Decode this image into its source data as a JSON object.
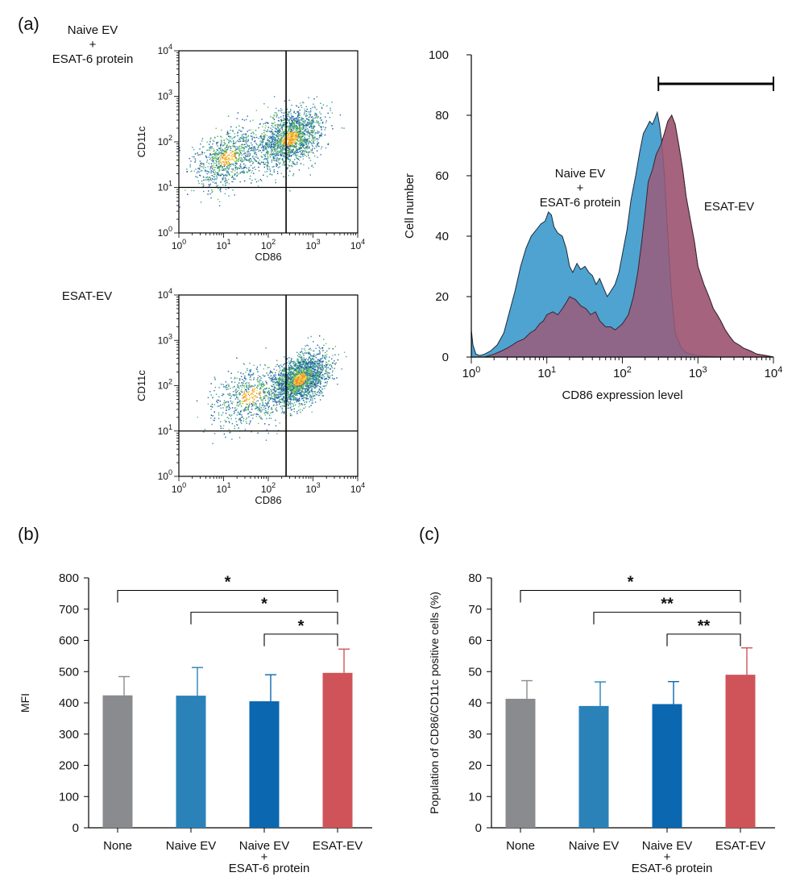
{
  "panel_labels": {
    "a": "(a)",
    "b": "(b)",
    "c": "(c)"
  },
  "colors": {
    "none": "#8a8b8f",
    "naive_ev": "#2b82b9",
    "naive_ev_protein": "#0a67b0",
    "esat_ev": "#cf5459",
    "hist_naive_fill": "#4fa3d1",
    "hist_esat_fill": "#9a5c7a",
    "hist_esat_edge": "#e08a8e",
    "naive_text": "#2a7fb8",
    "esat_text": "#cf5459"
  },
  "chart_data": [
    {
      "type": "scatter",
      "id": "dotplot-naive",
      "group_label_lines": [
        "Naive EV",
        "+",
        "ESAT-6 protein"
      ],
      "xlabel": "CD86",
      "ylabel": "CD11c",
      "scale": "log10",
      "xlim": [
        1,
        10000
      ],
      "ylim": [
        1,
        10000
      ],
      "tick_exponents": [
        0,
        1,
        2,
        3,
        4
      ],
      "quadrant_gate": {
        "x": 250,
        "y": 10
      },
      "populations": [
        {
          "center": [
            12,
            45
          ],
          "spread": [
            0.38,
            0.3
          ],
          "n": 900
        },
        {
          "center": [
            300,
            120
          ],
          "spread": [
            0.35,
            0.3
          ],
          "n": 1700
        }
      ]
    },
    {
      "type": "scatter",
      "id": "dotplot-esat",
      "group_label_lines": [
        "ESAT-EV"
      ],
      "xlabel": "CD86",
      "ylabel": "CD11c",
      "scale": "log10",
      "xlim": [
        1,
        10000
      ],
      "ylim": [
        1,
        10000
      ],
      "tick_exponents": [
        0,
        1,
        2,
        3,
        4
      ],
      "quadrant_gate": {
        "x": 250,
        "y": 10
      },
      "populations": [
        {
          "center": [
            40,
            60
          ],
          "spread": [
            0.45,
            0.32
          ],
          "n": 700
        },
        {
          "center": [
            500,
            140
          ],
          "spread": [
            0.3,
            0.25
          ],
          "n": 2300
        }
      ]
    },
    {
      "type": "area",
      "id": "histogram",
      "xlabel": "CD86 expression level",
      "ylabel": "Cell number",
      "xscale": "log10",
      "xlim": [
        1,
        10000
      ],
      "ylim": [
        0,
        100
      ],
      "y_ticks": [
        0,
        20,
        40,
        60,
        80,
        100
      ],
      "x_tick_exponents": [
        0,
        1,
        2,
        3,
        4
      ],
      "gate_range": [
        300,
        10000
      ],
      "series": [
        {
          "name": "Naive EV + ESAT-6 protein",
          "label_lines": [
            "Naive EV",
            "+",
            "ESAT-6 protein"
          ],
          "x": [
            1,
            1.05,
            1.15,
            1.3,
            1.5,
            1.8,
            2.2,
            2.7,
            3.2,
            3.8,
            4.5,
            5.3,
            6.2,
            7.2,
            8.3,
            9.5,
            10.5,
            11.5,
            12.5,
            14,
            16,
            18,
            20,
            22,
            25,
            28,
            32,
            36,
            40,
            45,
            50,
            56,
            63,
            71,
            80,
            90,
            100,
            115,
            130,
            150,
            170,
            190,
            210,
            230,
            250,
            270,
            290,
            310,
            330,
            360,
            400,
            450,
            500,
            600,
            700,
            800,
            1000,
            1500,
            2000,
            3000,
            5000,
            7000,
            10000
          ],
          "y": [
            9,
            4,
            1,
            0.5,
            1,
            2,
            4,
            8,
            15,
            22,
            30,
            36,
            40,
            42,
            44,
            45,
            48,
            47,
            43,
            41,
            40,
            36,
            30,
            28,
            31,
            29,
            30,
            28,
            27,
            24,
            26,
            23,
            20,
            22,
            24,
            28,
            34,
            42,
            52,
            60,
            68,
            74,
            76,
            78,
            77,
            79,
            81,
            77,
            72,
            60,
            40,
            20,
            8,
            3,
            1.5,
            1,
            0.5,
            0.2,
            0,
            0,
            0,
            0,
            0
          ]
        },
        {
          "name": "ESAT-EV",
          "label_lines": [
            "ESAT-EV"
          ],
          "x": [
            1,
            1.5,
            2,
            2.5,
            3,
            3.5,
            4,
            5,
            6,
            7,
            8,
            9,
            10,
            12,
            14,
            16,
            18,
            20,
            24,
            28,
            33,
            38,
            44,
            50,
            60,
            70,
            80,
            90,
            100,
            120,
            140,
            160,
            180,
            200,
            220,
            250,
            280,
            320,
            360,
            400,
            450,
            500,
            560,
            630,
            700,
            800,
            900,
            1000,
            1200,
            1400,
            1600,
            1800,
            2000,
            2300,
            2600,
            3000,
            3500,
            4000,
            5000,
            6000,
            8000,
            10000
          ],
          "y": [
            0,
            0,
            1,
            2,
            3,
            4,
            5,
            6,
            8,
            9,
            11,
            12,
            14,
            15,
            14,
            16,
            18,
            20,
            19,
            17,
            16,
            14,
            15,
            12,
            10,
            10,
            9,
            10,
            11,
            14,
            20,
            28,
            38,
            48,
            58,
            62,
            67,
            70,
            74,
            78,
            80,
            77,
            70,
            62,
            53,
            45,
            38,
            30,
            24,
            20,
            16,
            14,
            12,
            9,
            7,
            5,
            4,
            3,
            2,
            1,
            0.5,
            0
          ]
        }
      ]
    },
    {
      "type": "bar",
      "id": "mfi",
      "ylabel": "MFI",
      "ylim": [
        0,
        800
      ],
      "y_ticks": [
        0,
        100,
        200,
        300,
        400,
        500,
        600,
        700,
        800
      ],
      "categories": [
        [
          "None"
        ],
        [
          "Naive EV"
        ],
        [
          "Naive EV",
          "+",
          "ESAT-6 protein"
        ],
        [
          "ESAT-EV"
        ]
      ],
      "values": [
        424,
        423,
        405,
        496
      ],
      "errors": [
        60,
        90,
        85,
        76
      ],
      "significance": [
        {
          "from": 0,
          "to": 3,
          "label": "*",
          "bracket_y": 760
        },
        {
          "from": 1,
          "to": 3,
          "label": "*",
          "bracket_y": 690
        },
        {
          "from": 2,
          "to": 3,
          "label": "*",
          "bracket_y": 620
        }
      ]
    },
    {
      "type": "bar",
      "id": "population",
      "ylabel": "Population of CD86/CD11c positive cells (%)",
      "ylim": [
        0,
        80
      ],
      "y_ticks": [
        0,
        10,
        20,
        30,
        40,
        50,
        60,
        70,
        80
      ],
      "categories": [
        [
          "None"
        ],
        [
          "Naive EV"
        ],
        [
          "Naive EV",
          "+",
          "ESAT-6 protein"
        ],
        [
          "ESAT-EV"
        ]
      ],
      "values": [
        41.3,
        39,
        39.6,
        49
      ],
      "errors": [
        5.8,
        7.7,
        7.2,
        8.6
      ],
      "significance": [
        {
          "from": 0,
          "to": 3,
          "label": "*",
          "bracket_y": 76
        },
        {
          "from": 1,
          "to": 3,
          "label": "**",
          "bracket_y": 69
        },
        {
          "from": 2,
          "to": 3,
          "label": "**",
          "bracket_y": 62
        }
      ]
    }
  ]
}
